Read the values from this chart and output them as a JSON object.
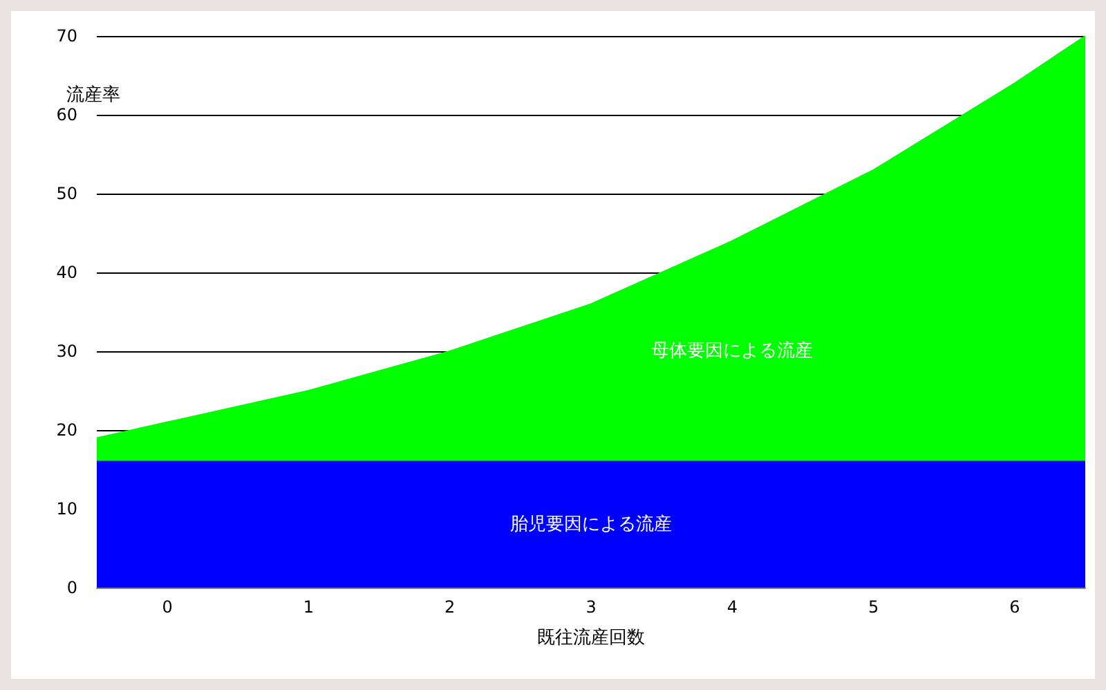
{
  "chart_data": {
    "type": "area",
    "stacked": true,
    "xlabel": "既往流産回数",
    "ylabel": "流産率",
    "x": [
      -0.5,
      0,
      1,
      2,
      3,
      4,
      5,
      6,
      6.5
    ],
    "xlim": [
      -0.5,
      6.5
    ],
    "xticks": [
      0,
      1,
      2,
      3,
      4,
      5,
      6
    ],
    "ylim": [
      0,
      70
    ],
    "yticks": [
      0,
      10,
      20,
      30,
      40,
      50,
      60,
      70
    ],
    "grid": "y",
    "legend": false,
    "marker": "none",
    "series": [
      {
        "name": "胎児要因による流産",
        "color": "#0000ff",
        "values": [
          16,
          16,
          16,
          16,
          16,
          16,
          16,
          16,
          16
        ]
      },
      {
        "name": "母体要因による流産",
        "color": "#00ff00",
        "values": [
          3,
          5,
          9,
          14,
          20,
          28,
          37,
          48,
          54
        ]
      }
    ]
  }
}
